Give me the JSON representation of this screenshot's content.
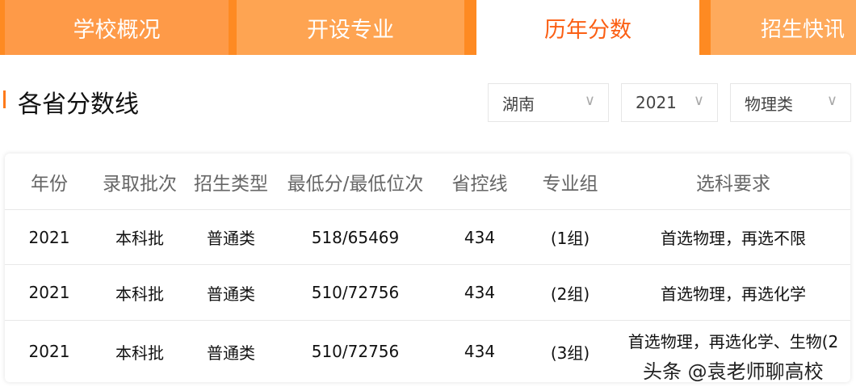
{
  "tabs": [
    {
      "label": "学校概况"
    },
    {
      "label": "开设专业"
    },
    {
      "label": "历年分数",
      "active": true
    },
    {
      "label": "招生快讯"
    }
  ],
  "section_title": "各省分数线",
  "filters": {
    "province": "湖南",
    "year": "2021",
    "subject": "物理类"
  },
  "table": {
    "headers": [
      "年份",
      "录取批次",
      "招生类型",
      "最低分/最低位次",
      "省控线",
      "专业组",
      "选科要求"
    ],
    "rows": [
      [
        "2021",
        "本科批",
        "普通类",
        "518/65469",
        "434",
        "(1组)",
        "首选物理，再选不限"
      ],
      [
        "2021",
        "本科批",
        "普通类",
        "510/72756",
        "434",
        "(2组)",
        "首选物理，再选化学"
      ],
      [
        "2021",
        "本科批",
        "普通类",
        "510/72756",
        "434",
        "(3组)",
        "首选物理，再选化学、生物(2"
      ]
    ]
  },
  "watermark": "头条 @袁老师聊高校",
  "colors": {
    "accent": "#fb5f14",
    "tab_bg": "#fe9a48"
  }
}
